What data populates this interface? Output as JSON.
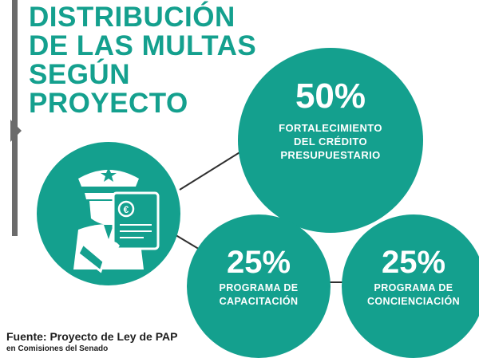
{
  "title": {
    "line1": "DISTRIBUCIÓN",
    "line2": "DE LAS MULTAS",
    "line3": "SEGÚN",
    "line4": "PROYECTO"
  },
  "main_circle": {
    "percent": "50%",
    "label_line1": "FORTALECIMIENTO",
    "label_line2": "DEL CRÉDITO",
    "label_line3": "PRESUPUESTARIO"
  },
  "left_circle": {
    "percent": "25%",
    "label_line1": "PROGRAMA DE",
    "label_line2": "CAPACITACIÓN"
  },
  "right_circle": {
    "percent": "25%",
    "label_line1": "PROGRAMA DE",
    "label_line2": "CONCIENCIACIÓN"
  },
  "icon": {
    "name": "police-officer-fine-icon",
    "currency_symbol": "€"
  },
  "source": {
    "label": "Fuente: Proyecto de Ley de PAP",
    "sub": "en Comisiones del Senado"
  },
  "colors": {
    "accent": "#14a08e",
    "bar": "#6b6b6b",
    "connector": "#2f2f2f"
  }
}
